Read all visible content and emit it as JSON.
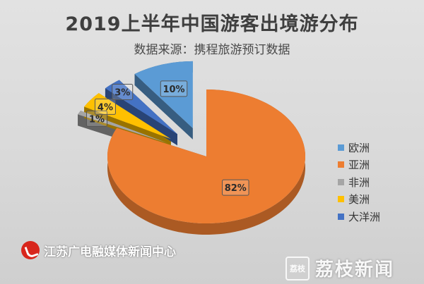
{
  "header": {
    "title": "2019上半年中国游客出境游分布",
    "subtitle": "数据来源：携程旅游预订数据"
  },
  "chart_data": {
    "type": "pie",
    "title": "2019上半年中国游客出境游分布",
    "subtitle": "数据来源：携程旅游预订数据",
    "legend_position": "right",
    "categories": [
      "欧洲",
      "亚洲",
      "非洲",
      "美洲",
      "大洋洲"
    ],
    "values": [
      10,
      82,
      1,
      4,
      3
    ],
    "data_labels": [
      "10%",
      "82%",
      "1%",
      "4%",
      "3%"
    ],
    "colors": [
      "#5b9bd5",
      "#ed7d31",
      "#a5a5a5",
      "#ffc000",
      "#4472c4"
    ]
  },
  "watermarks": {
    "left": "江苏广电融媒体新闻中心",
    "right": "荔枝新闻",
    "right_stamp": "荔枝"
  }
}
